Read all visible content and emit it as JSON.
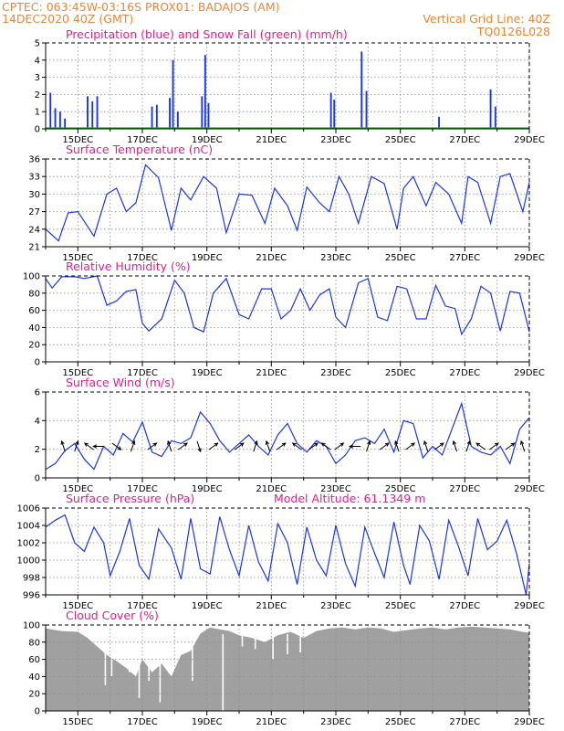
{
  "header": {
    "line1_left": "CPTEC:   063:45W-03:16S   PROX01: BADAJOS (AM)",
    "line2_left": "14DEC2020 40Z (GMT)",
    "line2_right": "Vertical Grid Line: 40Z",
    "line3_right": "TQ0126L028"
  },
  "colors": {
    "header": "#e8873a",
    "panel_title": "#e0208c",
    "series": "#1a37e6",
    "snow": "#1fa81f",
    "cloud": "#a0a0a0",
    "wind_arrow": "#000000"
  },
  "date_labels": [
    "15DEC",
    "17DEC",
    "19DEC",
    "21DEC",
    "23DEC",
    "25DEC",
    "27DEC",
    "29DEC"
  ],
  "chart_data": [
    {
      "id": "precip",
      "type": "bar",
      "title": "Precipitation (blue) and Snow Fall (green) (mm/h)",
      "ylim": [
        0,
        5
      ],
      "yticks": [
        0,
        1,
        2,
        3,
        4,
        5
      ],
      "series": [
        {
          "name": "Precipitation (blue)",
          "points": [
            [
              14.15,
              2.1
            ],
            [
              14.3,
              1.2
            ],
            [
              14.45,
              1.0
            ],
            [
              14.6,
              0.6
            ],
            [
              15.3,
              1.9
            ],
            [
              15.45,
              1.6
            ],
            [
              15.6,
              1.9
            ],
            [
              17.3,
              1.3
            ],
            [
              17.45,
              1.4
            ],
            [
              17.85,
              1.8
            ],
            [
              17.95,
              4.0
            ],
            [
              18.1,
              1.0
            ],
            [
              18.85,
              1.9
            ],
            [
              18.95,
              4.3
            ],
            [
              19.05,
              1.5
            ],
            [
              22.85,
              2.1
            ],
            [
              22.95,
              1.7
            ],
            [
              23.8,
              4.5
            ],
            [
              23.95,
              2.2
            ],
            [
              26.2,
              0.7
            ],
            [
              27.8,
              2.3
            ],
            [
              27.95,
              1.3
            ]
          ]
        },
        {
          "name": "Snow Fall (green)",
          "points": []
        }
      ]
    },
    {
      "id": "temperature",
      "type": "line",
      "title": "Surface Temperature (nC)",
      "ylim": [
        21,
        36
      ],
      "yticks": [
        21,
        24,
        27,
        30,
        33,
        36
      ],
      "points": [
        [
          14.0,
          24.0
        ],
        [
          14.4,
          22.0
        ],
        [
          14.7,
          26.8
        ],
        [
          15.0,
          27.0
        ],
        [
          15.5,
          22.8
        ],
        [
          15.9,
          30.0
        ],
        [
          16.2,
          31.0
        ],
        [
          16.5,
          27.0
        ],
        [
          16.8,
          28.5
        ],
        [
          17.1,
          35.0
        ],
        [
          17.5,
          32.8
        ],
        [
          17.9,
          23.8
        ],
        [
          18.2,
          31.0
        ],
        [
          18.5,
          29.0
        ],
        [
          18.9,
          33.0
        ],
        [
          19.3,
          31.0
        ],
        [
          19.6,
          23.4
        ],
        [
          20.0,
          30.0
        ],
        [
          20.4,
          29.8
        ],
        [
          20.8,
          25.0
        ],
        [
          21.1,
          31.0
        ],
        [
          21.5,
          28.0
        ],
        [
          21.8,
          23.8
        ],
        [
          22.1,
          31.2
        ],
        [
          22.5,
          28.5
        ],
        [
          22.8,
          27.0
        ],
        [
          23.1,
          33.0
        ],
        [
          23.4,
          30.0
        ],
        [
          23.7,
          25.0
        ],
        [
          24.1,
          33.0
        ],
        [
          24.5,
          31.8
        ],
        [
          24.9,
          24.0
        ],
        [
          25.1,
          31.0
        ],
        [
          25.4,
          33.0
        ],
        [
          25.8,
          28.0
        ],
        [
          26.1,
          32.0
        ],
        [
          26.5,
          30.0
        ],
        [
          26.9,
          25.0
        ],
        [
          27.1,
          33.0
        ],
        [
          27.4,
          32.0
        ],
        [
          27.8,
          25.0
        ],
        [
          28.1,
          33.0
        ],
        [
          28.4,
          33.5
        ],
        [
          28.8,
          27.0
        ],
        [
          29.0,
          32.0
        ]
      ]
    },
    {
      "id": "humidity",
      "type": "line",
      "title": "Relative Humidity (%)",
      "ylim": [
        0,
        100
      ],
      "yticks": [
        0,
        20,
        40,
        60,
        80,
        100
      ],
      "points": [
        [
          14.0,
          97
        ],
        [
          14.2,
          86
        ],
        [
          14.5,
          99
        ],
        [
          14.9,
          99
        ],
        [
          15.2,
          97
        ],
        [
          15.6,
          100
        ],
        [
          15.9,
          66
        ],
        [
          16.2,
          71
        ],
        [
          16.5,
          82
        ],
        [
          16.8,
          84
        ],
        [
          17.0,
          45
        ],
        [
          17.2,
          36
        ],
        [
          17.6,
          50
        ],
        [
          18.0,
          95
        ],
        [
          18.3,
          80
        ],
        [
          18.6,
          40
        ],
        [
          18.9,
          35
        ],
        [
          19.2,
          80
        ],
        [
          19.6,
          97
        ],
        [
          20.0,
          55
        ],
        [
          20.3,
          50
        ],
        [
          20.7,
          85
        ],
        [
          21.0,
          85
        ],
        [
          21.3,
          50
        ],
        [
          21.6,
          60
        ],
        [
          21.9,
          85
        ],
        [
          22.2,
          60
        ],
        [
          22.5,
          78
        ],
        [
          22.8,
          85
        ],
        [
          23.0,
          52
        ],
        [
          23.3,
          40
        ],
        [
          23.7,
          92
        ],
        [
          24.0,
          97
        ],
        [
          24.3,
          52
        ],
        [
          24.6,
          48
        ],
        [
          24.9,
          88
        ],
        [
          25.2,
          85
        ],
        [
          25.5,
          50
        ],
        [
          25.8,
          50
        ],
        [
          26.1,
          89
        ],
        [
          26.4,
          65
        ],
        [
          26.7,
          62
        ],
        [
          26.9,
          32
        ],
        [
          27.2,
          50
        ],
        [
          27.5,
          88
        ],
        [
          27.8,
          80
        ],
        [
          28.1,
          36
        ],
        [
          28.4,
          82
        ],
        [
          28.7,
          80
        ],
        [
          29.0,
          35
        ]
      ]
    },
    {
      "id": "wind",
      "type": "line",
      "title": "Surface Wind (m/s)",
      "ylim": [
        0,
        6
      ],
      "yticks": [
        0,
        2,
        4,
        6
      ],
      "points": [
        [
          14.0,
          0.6
        ],
        [
          14.3,
          1.0
        ],
        [
          14.6,
          1.9
        ],
        [
          14.9,
          2.4
        ],
        [
          15.2,
          1.3
        ],
        [
          15.5,
          0.6
        ],
        [
          15.8,
          2.2
        ],
        [
          16.1,
          1.6
        ],
        [
          16.4,
          3.1
        ],
        [
          16.7,
          2.5
        ],
        [
          17.0,
          3.9
        ],
        [
          17.3,
          1.8
        ],
        [
          17.6,
          1.5
        ],
        [
          17.9,
          2.6
        ],
        [
          18.2,
          2.4
        ],
        [
          18.5,
          2.8
        ],
        [
          18.8,
          4.6
        ],
        [
          19.1,
          3.8
        ],
        [
          19.4,
          2.6
        ],
        [
          19.7,
          1.8
        ],
        [
          20.0,
          2.4
        ],
        [
          20.3,
          3.0
        ],
        [
          20.6,
          2.2
        ],
        [
          20.9,
          1.6
        ],
        [
          21.2,
          3.0
        ],
        [
          21.5,
          3.8
        ],
        [
          21.8,
          2.4
        ],
        [
          22.1,
          1.8
        ],
        [
          22.4,
          2.6
        ],
        [
          22.7,
          2.2
        ],
        [
          23.0,
          1.0
        ],
        [
          23.3,
          1.6
        ],
        [
          23.6,
          2.6
        ],
        [
          23.9,
          2.8
        ],
        [
          24.2,
          2.4
        ],
        [
          24.5,
          3.4
        ],
        [
          24.8,
          1.8
        ],
        [
          25.1,
          4.0
        ],
        [
          25.4,
          3.8
        ],
        [
          25.7,
          1.4
        ],
        [
          26.0,
          2.2
        ],
        [
          26.3,
          1.6
        ],
        [
          26.6,
          3.4
        ],
        [
          26.9,
          5.2
        ],
        [
          27.2,
          2.2
        ],
        [
          27.5,
          1.8
        ],
        [
          27.8,
          1.6
        ],
        [
          28.1,
          2.2
        ],
        [
          28.4,
          1.0
        ],
        [
          28.7,
          3.4
        ],
        [
          29.0,
          4.2
        ]
      ],
      "arrows": [
        [
          14.55,
          0.3
        ],
        [
          14.95,
          0.2
        ],
        [
          15.35,
          0.4
        ],
        [
          15.65,
          0.5
        ],
        [
          16.2,
          0.9
        ],
        [
          16.7,
          0.2
        ],
        [
          17.3,
          0.1
        ],
        [
          17.85,
          0.3
        ],
        [
          18.25,
          0.1
        ],
        [
          18.75,
          0.8
        ],
        [
          19.2,
          0.1
        ],
        [
          20.0,
          0.1
        ],
        [
          20.5,
          0.2
        ],
        [
          20.9,
          0.3
        ],
        [
          21.3,
          0.1
        ],
        [
          21.8,
          0.4
        ],
        [
          22.3,
          0.1
        ],
        [
          22.7,
          0.4
        ],
        [
          23.1,
          0.1
        ],
        [
          23.6,
          0.5
        ],
        [
          24.0,
          0.2
        ],
        [
          24.5,
          0.1
        ],
        [
          24.9,
          0.3
        ],
        [
          25.3,
          0.1
        ],
        [
          25.8,
          0.3
        ],
        [
          26.2,
          0.1
        ],
        [
          26.7,
          0.3
        ],
        [
          27.1,
          0.2
        ],
        [
          27.5,
          0.4
        ],
        [
          27.9,
          0.1
        ],
        [
          28.4,
          0.1
        ],
        [
          28.8,
          0.3
        ]
      ]
    },
    {
      "id": "pressure",
      "type": "line",
      "title": "Surface Pressure (hPa)",
      "annotation": "Model Altitude: 61.1349 m",
      "ylim": [
        996,
        1006
      ],
      "yticks": [
        996,
        998,
        1000,
        1002,
        1004,
        1006
      ],
      "points": [
        [
          14.0,
          1003.8
        ],
        [
          14.3,
          1004.6
        ],
        [
          14.6,
          1005.2
        ],
        [
          14.9,
          1002.0
        ],
        [
          15.2,
          1001.0
        ],
        [
          15.5,
          1003.8
        ],
        [
          15.8,
          1002.0
        ],
        [
          16.0,
          998.2
        ],
        [
          16.3,
          1001.0
        ],
        [
          16.6,
          1004.8
        ],
        [
          16.9,
          999.4
        ],
        [
          17.2,
          997.8
        ],
        [
          17.5,
          1003.6
        ],
        [
          17.9,
          1001.4
        ],
        [
          18.2,
          997.8
        ],
        [
          18.5,
          1004.8
        ],
        [
          18.8,
          999.0
        ],
        [
          19.1,
          998.4
        ],
        [
          19.4,
          1005.0
        ],
        [
          19.7,
          1001.2
        ],
        [
          20.0,
          998.2
        ],
        [
          20.3,
          1004.0
        ],
        [
          20.6,
          999.8
        ],
        [
          20.9,
          997.6
        ],
        [
          21.2,
          1004.2
        ],
        [
          21.5,
          1002.0
        ],
        [
          21.8,
          997.2
        ],
        [
          22.1,
          1003.8
        ],
        [
          22.4,
          1000.0
        ],
        [
          22.7,
          998.2
        ],
        [
          23.0,
          1004.0
        ],
        [
          23.3,
          999.6
        ],
        [
          23.6,
          997.0
        ],
        [
          23.9,
          1003.8
        ],
        [
          24.2,
          1000.8
        ],
        [
          24.5,
          998.0
        ],
        [
          24.8,
          1004.4
        ],
        [
          25.1,
          999.4
        ],
        [
          25.3,
          997.2
        ],
        [
          25.6,
          1004.0
        ],
        [
          25.9,
          1002.2
        ],
        [
          26.2,
          997.8
        ],
        [
          26.5,
          1004.6
        ],
        [
          26.8,
          1001.6
        ],
        [
          27.1,
          998.2
        ],
        [
          27.4,
          1004.8
        ],
        [
          27.7,
          1001.2
        ],
        [
          28.0,
          1002.2
        ],
        [
          28.3,
          1004.6
        ],
        [
          28.6,
          1000.8
        ],
        [
          28.9,
          996.0
        ],
        [
          29.0,
          999.6
        ]
      ]
    },
    {
      "id": "cloud",
      "type": "area",
      "title": "Cloud Cover (%)",
      "ylim": [
        0,
        100
      ],
      "yticks": [
        0,
        20,
        40,
        60,
        80,
        100
      ],
      "points": [
        [
          14.0,
          96
        ],
        [
          14.5,
          93
        ],
        [
          15.0,
          92
        ],
        [
          15.3,
          85
        ],
        [
          15.6,
          75
        ],
        [
          15.9,
          65
        ],
        [
          16.2,
          58
        ],
        [
          16.5,
          50
        ],
        [
          16.8,
          40
        ],
        [
          17.0,
          60
        ],
        [
          17.3,
          45
        ],
        [
          17.6,
          55
        ],
        [
          17.9,
          40
        ],
        [
          18.2,
          65
        ],
        [
          18.5,
          70
        ],
        [
          18.8,
          90
        ],
        [
          19.1,
          97
        ],
        [
          19.4,
          95
        ],
        [
          19.7,
          93
        ],
        [
          20.0,
          88
        ],
        [
          20.4,
          85
        ],
        [
          20.8,
          80
        ],
        [
          21.2,
          88
        ],
        [
          21.6,
          92
        ],
        [
          22.0,
          85
        ],
        [
          22.4,
          93
        ],
        [
          22.8,
          96
        ],
        [
          23.2,
          97
        ],
        [
          23.6,
          95
        ],
        [
          24.0,
          97
        ],
        [
          24.4,
          96
        ],
        [
          24.8,
          92
        ],
        [
          25.2,
          94
        ],
        [
          25.6,
          96
        ],
        [
          26.0,
          97
        ],
        [
          26.4,
          95
        ],
        [
          26.8,
          97
        ],
        [
          27.2,
          98
        ],
        [
          27.6,
          97
        ],
        [
          28.0,
          96
        ],
        [
          28.4,
          95
        ],
        [
          28.8,
          92
        ],
        [
          29.0,
          91
        ]
      ],
      "dips": [
        [
          15.85,
          30
        ],
        [
          16.05,
          40
        ],
        [
          16.6,
          45
        ],
        [
          16.9,
          15
        ],
        [
          17.2,
          35
        ],
        [
          17.55,
          10
        ],
        [
          17.95,
          50
        ],
        [
          18.55,
          35
        ],
        [
          19.5,
          0
        ],
        [
          20.1,
          75
        ],
        [
          20.5,
          72
        ],
        [
          21.05,
          60
        ],
        [
          21.5,
          66
        ],
        [
          21.9,
          68
        ]
      ]
    }
  ]
}
